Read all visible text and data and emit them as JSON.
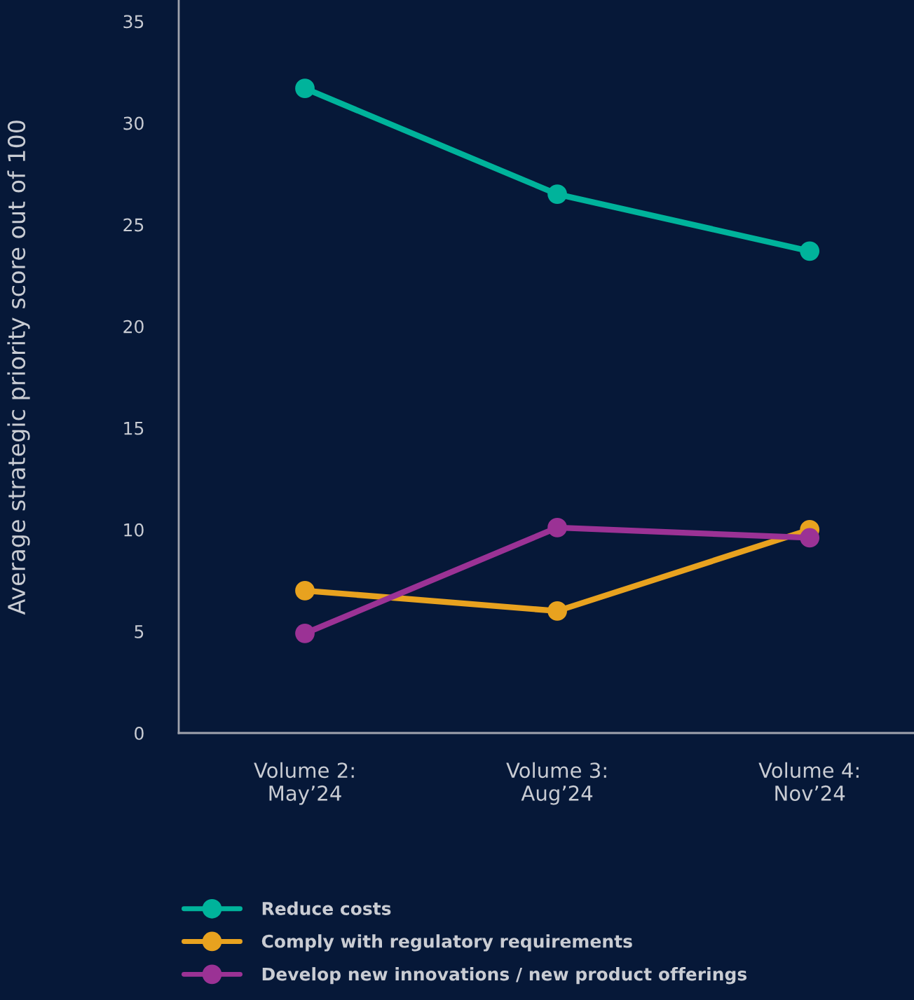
{
  "chart_data": {
    "type": "line",
    "ylabel": "Average strategic priority score out of 100",
    "categories": [
      "Volume 2:\nMay’24",
      "Volume 3:\nAug’24",
      "Volume 4:\nNov’24"
    ],
    "series": [
      {
        "name": "Reduce costs",
        "color": "#00b39b",
        "values": [
          31.7,
          26.5,
          23.7
        ]
      },
      {
        "name": "Comply with regulatory requirements",
        "color": "#e8a21f",
        "values": [
          7.0,
          6.0,
          10.0
        ]
      },
      {
        "name": "Develop new innovations / new product offerings",
        "color": "#9b3295",
        "values": [
          4.9,
          10.1,
          9.6
        ]
      }
    ],
    "ylim": [
      0,
      36
    ],
    "yticks": [
      0,
      5,
      10,
      15,
      20,
      25,
      30,
      35
    ],
    "grid": false,
    "legend": "bottom",
    "marker": "circle",
    "line_style": "solid"
  }
}
